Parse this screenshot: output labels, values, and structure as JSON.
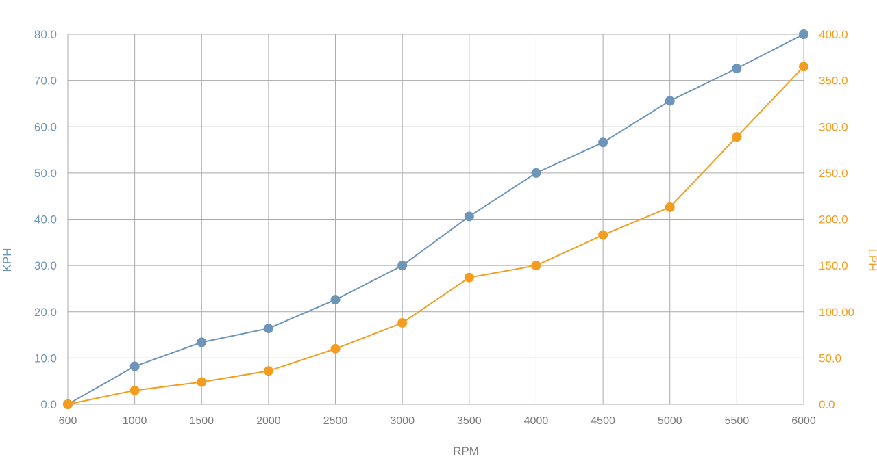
{
  "chart_data": {
    "type": "line",
    "xlabel": "RPM",
    "x_tick_labels": [
      "600",
      "1000",
      "1500",
      "2000",
      "2500",
      "3000",
      "3500",
      "4000",
      "4500",
      "5000",
      "5500",
      "6000"
    ],
    "y_left": {
      "label": "KPH",
      "ylim": [
        0,
        80
      ],
      "tick_values": [
        0,
        10,
        20,
        30,
        40,
        50,
        60,
        70,
        80
      ],
      "tick_labels": [
        "0.0",
        "10.0",
        "20.0",
        "30.0",
        "40.0",
        "50.0",
        "60.0",
        "70.0",
        "80.0"
      ],
      "color": "#6d94b9"
    },
    "y_right": {
      "label": "LPH",
      "ylim": [
        0,
        400
      ],
      "tick_values": [
        0,
        50,
        100,
        150,
        200,
        250,
        300,
        350,
        400
      ],
      "tick_labels": [
        "0.0",
        "50.0",
        "100.00",
        "150.0",
        "200.0",
        "250.0",
        "300.0",
        "350.0",
        "400.0"
      ],
      "color": "#f39c1f"
    },
    "grid": true,
    "series": [
      {
        "axis": "left",
        "color": "#6d94b9",
        "values": [
          0,
          8.2,
          13.4,
          16.4,
          22.6,
          30.0,
          40.6,
          50.0,
          56.6,
          65.6,
          72.6,
          80.0
        ]
      },
      {
        "axis": "right",
        "color": "#f39c1f",
        "values": [
          0,
          15,
          24,
          36,
          60,
          88,
          137,
          150,
          183,
          213,
          289,
          365
        ]
      }
    ]
  }
}
